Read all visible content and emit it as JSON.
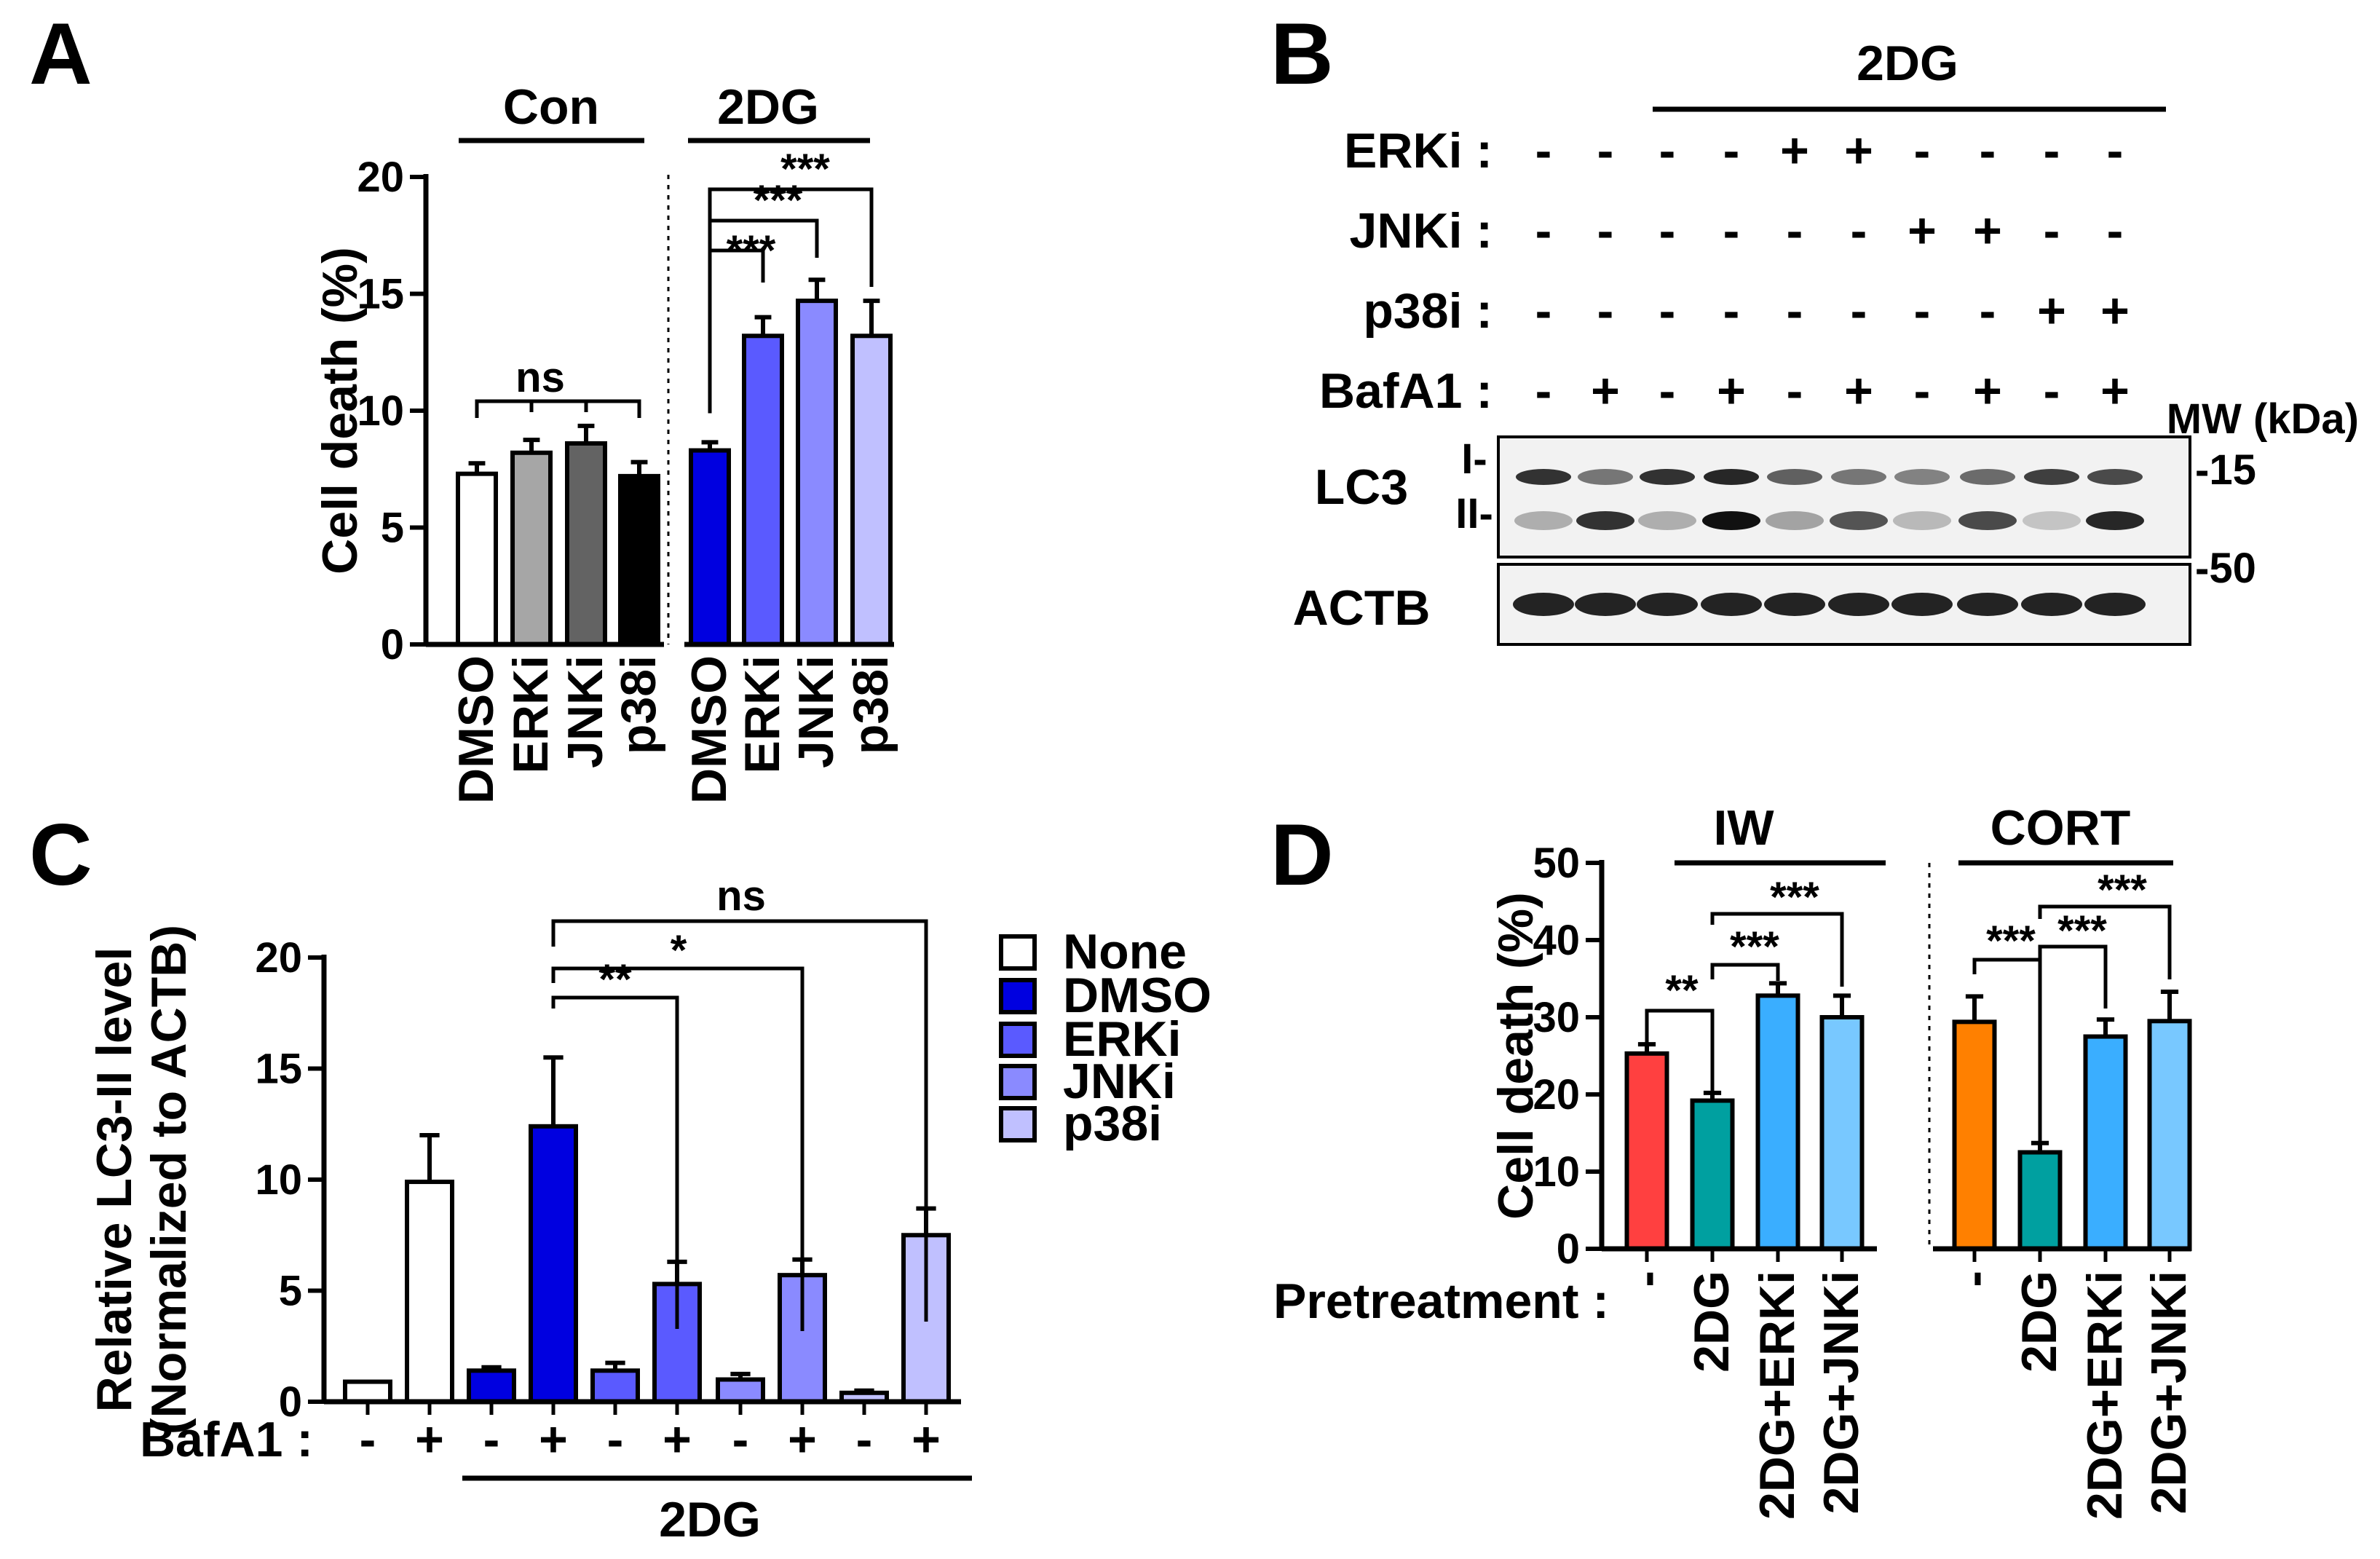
{
  "figure_labels": [
    "A",
    "B",
    "C",
    "D"
  ],
  "chart_data": [
    {
      "panel": "A",
      "type": "bar",
      "ylabel": "Cell death (%)",
      "ylim": [
        0,
        20
      ],
      "yticks": [
        "0",
        "5",
        "10",
        "15",
        "20"
      ],
      "groups": [
        "Con",
        "2DG"
      ],
      "categories": [
        "DMSO",
        "ERKi",
        "JNKi",
        "p38i",
        "DMSO",
        "ERKi",
        "JNKi",
        "p38i"
      ],
      "values": [
        7.3,
        8.2,
        8.6,
        7.2,
        8.3,
        13.2,
        14.7,
        13.2
      ],
      "errors": [
        0.45,
        0.55,
        0.75,
        0.6,
        0.35,
        0.8,
        0.9,
        1.5
      ],
      "colors": [
        "#ffffff",
        "#a6a6a6",
        "#636363",
        "#000000",
        "#0000e0",
        "#5a5aff",
        "#8a8aff",
        "#c0c0ff"
      ],
      "annotations": [
        "ns",
        "***",
        "***",
        "***"
      ]
    },
    {
      "panel": "B",
      "type": "table",
      "header": "2DG",
      "row_labels": [
        "ERKi :",
        "JNKi :",
        "p38i :",
        "BafA1 :"
      ],
      "rows": [
        [
          "-",
          "-",
          "-",
          "-",
          "+",
          "+",
          "-",
          "-",
          "-",
          "-"
        ],
        [
          "-",
          "-",
          "-",
          "-",
          "-",
          "-",
          "+",
          "+",
          "-",
          "-"
        ],
        [
          "-",
          "-",
          "-",
          "-",
          "-",
          "-",
          "-",
          "-",
          "+",
          "+"
        ],
        [
          "-",
          "+",
          "-",
          "+",
          "-",
          "+",
          "-",
          "+",
          "-",
          "+"
        ]
      ],
      "mw_label": "MW (kDa)",
      "blots": [
        "LC3",
        "ACTB"
      ],
      "band_labels": [
        "I-",
        "II-"
      ],
      "mw_markers": [
        "-15",
        "-50"
      ]
    },
    {
      "panel": "C",
      "type": "bar",
      "ylabel_line1": "Relative LC3-II level",
      "ylabel_line2": "(Normalized to ACTB)",
      "ylim": [
        0,
        20
      ],
      "yticks": [
        "0",
        "5",
        "10",
        "15",
        "20"
      ],
      "row_label": "BafA1 :",
      "bafa1": [
        "-",
        "+",
        "-",
        "+",
        "-",
        "+",
        "-",
        "+",
        "-",
        "+"
      ],
      "xgroup": "2DG",
      "values": [
        0.9,
        9.9,
        1.4,
        12.4,
        1.4,
        5.3,
        1.0,
        5.7,
        0.4,
        7.5
      ],
      "errors": [
        0,
        2.1,
        0.15,
        3.1,
        0.35,
        1.0,
        0.25,
        0.7,
        0.1,
        1.2
      ],
      "colors": [
        "#ffffff",
        "#ffffff",
        "#0000e0",
        "#0000e0",
        "#5a5aff",
        "#5a5aff",
        "#8a8aff",
        "#8a8aff",
        "#c0c0ff",
        "#c0c0ff"
      ],
      "legend": [
        {
          "name": "None",
          "color": "#ffffff"
        },
        {
          "name": "DMSO",
          "color": "#0000e0"
        },
        {
          "name": "ERKi",
          "color": "#5a5aff"
        },
        {
          "name": "JNKi",
          "color": "#8a8aff"
        },
        {
          "name": "p38i",
          "color": "#c0c0ff"
        }
      ],
      "annotations": [
        "ns",
        "*",
        "**"
      ]
    },
    {
      "panel": "D",
      "type": "bar",
      "ylabel": "Cell death (%)",
      "ylim": [
        0,
        50
      ],
      "yticks": [
        "0",
        "10",
        "20",
        "30",
        "40",
        "50"
      ],
      "groups": [
        "IW",
        "CORT"
      ],
      "row_label": "Pretreatment :",
      "categories": [
        "-",
        "2DG",
        "2DG+ERKi",
        "2DG+JNKi",
        "-",
        "2DG",
        "2DG+ERKi",
        "2DG+JNKi"
      ],
      "values": [
        25.3,
        19.2,
        32.8,
        30.0,
        29.4,
        12.5,
        27.5,
        29.5
      ],
      "errors": [
        1.2,
        1.0,
        1.6,
        2.8,
        3.3,
        1.2,
        2.2,
        3.8
      ],
      "colors": [
        "#ff4040",
        "#00a0a0",
        "#3aaeff",
        "#78c8ff",
        "#ff8000",
        "#00a0a0",
        "#3aaeff",
        "#78c8ff"
      ],
      "annotations": [
        "**",
        "***",
        "***",
        "***",
        "***",
        "***"
      ]
    }
  ]
}
